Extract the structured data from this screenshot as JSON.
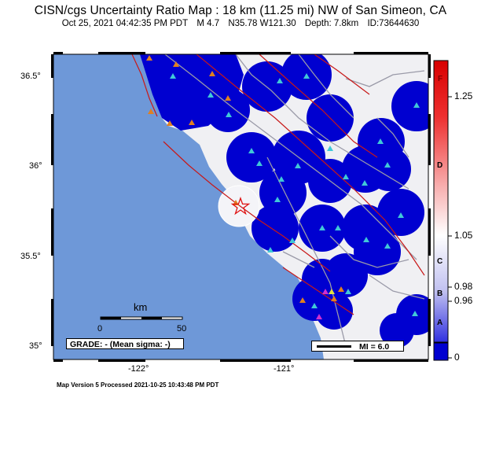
{
  "title": "CISN/cgs Uncertainty Ratio Map : 18 km (11.25 mi) NW of San Simeon, CA",
  "subtitle": {
    "datetime": "Oct 25, 2021 04:42:35 PM PDT",
    "magnitude": "M 4.7",
    "location": "N35.78 W121.30",
    "depth": "Depth: 7.8km",
    "id": "ID:73644630"
  },
  "axes": {
    "lat_labels": [
      "36.5°",
      "36°",
      "35.5°",
      "35°"
    ],
    "lon_labels": [
      "-122°",
      "-121°"
    ]
  },
  "scale_bar": {
    "unit": "km",
    "min_label": "0",
    "max_label": "50"
  },
  "grade_box": "GRADE: - (Mean sigma: -)",
  "mi_legend": "MI = 6.0",
  "footer": "Map Version 5 Processed 2021-10-25 10:43:48 PM PDT",
  "colorbar": {
    "grades": [
      "F",
      "D",
      "C",
      "B",
      "A"
    ],
    "values": [
      "1.25",
      "1.05",
      "0.98",
      "0.96",
      "0"
    ]
  },
  "colors": {
    "ocean": "#6e98d8",
    "land_low": "#f0f0f3",
    "station_high": "#0000d0",
    "fault": "#c81818",
    "epicenter": "#e01010"
  }
}
